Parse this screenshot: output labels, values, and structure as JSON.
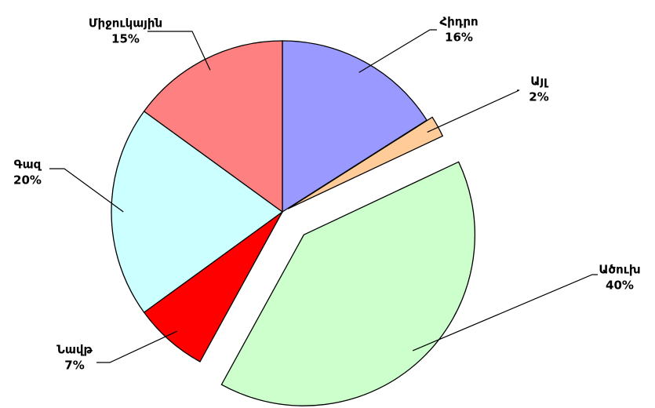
{
  "chart_data": {
    "type": "pie",
    "categories": [
      "Հիդրո",
      "Այլ",
      "Ածուխ",
      "Նավթ",
      "Գազ",
      "Միջուկային"
    ],
    "values": [
      16,
      2,
      40,
      7,
      20,
      15
    ],
    "value_labels": [
      "16%",
      "2%",
      "40%",
      "7%",
      "20%",
      "15%"
    ],
    "colors": [
      "#9999ff",
      "#ffcc99",
      "#ccffcc",
      "#ff0000",
      "#ccffff",
      "#ff8080"
    ]
  }
}
